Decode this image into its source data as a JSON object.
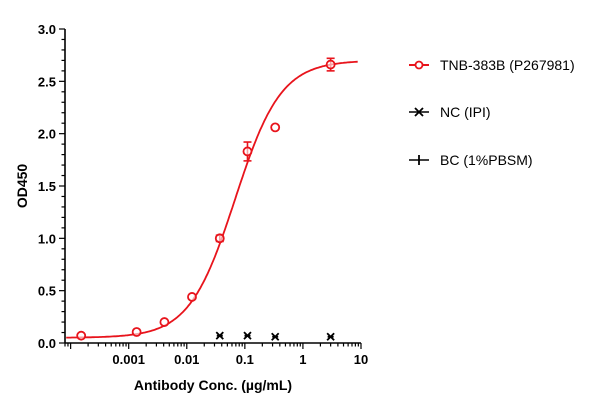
{
  "chart_data": {
    "type": "scatter",
    "xlabel": "Antibody Conc. (µg/mL)",
    "ylabel": "OD450",
    "xscale": "log",
    "xlim": [
      8e-05,
      10
    ],
    "ylim": [
      0,
      3.0
    ],
    "x_ticks": [
      0.001,
      0.01,
      0.1,
      1,
      10
    ],
    "x_tick_labels": [
      "0.001",
      "0.01",
      "0.1",
      "1",
      "10"
    ],
    "y_ticks": [
      0,
      0.5,
      1.0,
      1.5,
      2.0,
      2.5,
      3.0
    ],
    "y_tick_labels": [
      "0.0",
      "0.5",
      "1.0",
      "1.5",
      "2.0",
      "2.5",
      "3.0"
    ],
    "grid": false,
    "legend_position": "right",
    "series": [
      {
        "name": "TNB-383B (P267981)",
        "color": "#e8141c",
        "marker": "open-circle",
        "x": [
          0.000152,
          0.00137,
          0.00412,
          0.0123,
          0.037,
          0.111,
          0.333,
          3
        ],
        "y": [
          0.07,
          0.105,
          0.2,
          0.44,
          1.0,
          1.83,
          2.06,
          2.66
        ],
        "error": [
          0.01,
          0.01,
          0.01,
          0.01,
          0.03,
          0.09,
          0.01,
          0.06
        ],
        "fit": {
          "model": "4PL",
          "bottom": 0.05,
          "top": 2.7,
          "ec50": 0.068,
          "hill": 1.1
        }
      },
      {
        "name": "NC (IPI)",
        "color": "#000000",
        "marker": "x-star",
        "x": [
          0.037,
          0.111,
          0.333,
          3
        ],
        "y": [
          0.07,
          0.07,
          0.06,
          0.06
        ]
      },
      {
        "name": "BC (1%PBSM)",
        "color": "#000000",
        "marker": "plus",
        "x": [],
        "y": []
      }
    ]
  }
}
